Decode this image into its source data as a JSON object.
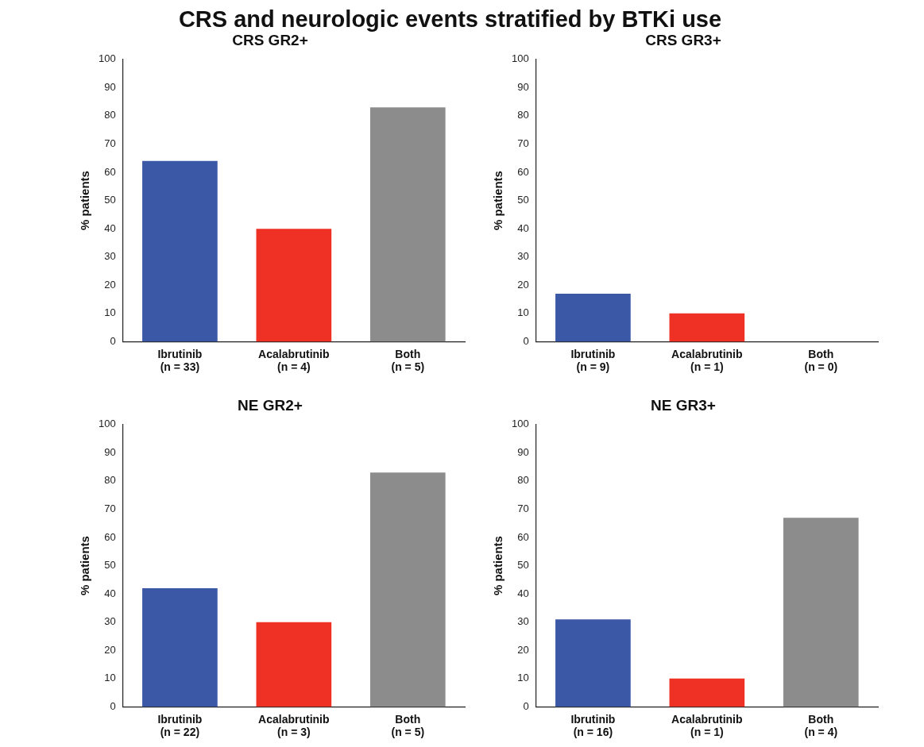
{
  "chart_data": [
    {
      "type": "bar",
      "title": "CRS and neurologic events stratified by BTKi use",
      "subtitle": "CRS GR2+",
      "ylabel": "% patients",
      "categories": [
        "Ibrutinib\n(n = 33)",
        "Acalabrutinib\n(n = 4)",
        "Both\n(n = 5)"
      ],
      "values": [
        64,
        40,
        83
      ],
      "colors": [
        "#3a58a6",
        "#ee3124",
        "#8c8c8c"
      ],
      "ylim": [
        0,
        100
      ],
      "yticks": [
        0,
        10,
        20,
        30,
        40,
        50,
        60,
        70,
        80,
        90,
        100
      ],
      "grid": false,
      "legend": false
    },
    {
      "type": "bar",
      "subtitle": "CRS GR3+",
      "ylabel": "% patients",
      "categories": [
        "Ibrutinib\n(n = 9)",
        "Acalabrutinib\n(n = 1)",
        "Both\n(n = 0)"
      ],
      "values": [
        17,
        10,
        0
      ],
      "colors": [
        "#3a58a6",
        "#ee3124",
        "#8c8c8c"
      ],
      "ylim": [
        0,
        100
      ],
      "yticks": [
        0,
        10,
        20,
        30,
        40,
        50,
        60,
        70,
        80,
        90,
        100
      ],
      "grid": false,
      "legend": false
    },
    {
      "type": "bar",
      "subtitle": "NE GR2+",
      "ylabel": "% patients",
      "categories": [
        "Ibrutinib\n(n = 22)",
        "Acalabrutinib\n(n = 3)",
        "Both\n(n = 5)"
      ],
      "values": [
        42,
        30,
        83
      ],
      "colors": [
        "#3a58a6",
        "#ee3124",
        "#8c8c8c"
      ],
      "ylim": [
        0,
        100
      ],
      "yticks": [
        0,
        10,
        20,
        30,
        40,
        50,
        60,
        70,
        80,
        90,
        100
      ],
      "grid": false,
      "legend": false
    },
    {
      "type": "bar",
      "subtitle": "NE GR3+",
      "ylabel": "% patients",
      "categories": [
        "Ibrutinib\n(n = 16)",
        "Acalabrutinib\n(n = 1)",
        "Both\n(n = 4)"
      ],
      "values": [
        31,
        10,
        67
      ],
      "colors": [
        "#3a58a6",
        "#ee3124",
        "#8c8c8c"
      ],
      "ylim": [
        0,
        100
      ],
      "yticks": [
        0,
        10,
        20,
        30,
        40,
        50,
        60,
        70,
        80,
        90,
        100
      ],
      "grid": false,
      "legend": false
    }
  ]
}
